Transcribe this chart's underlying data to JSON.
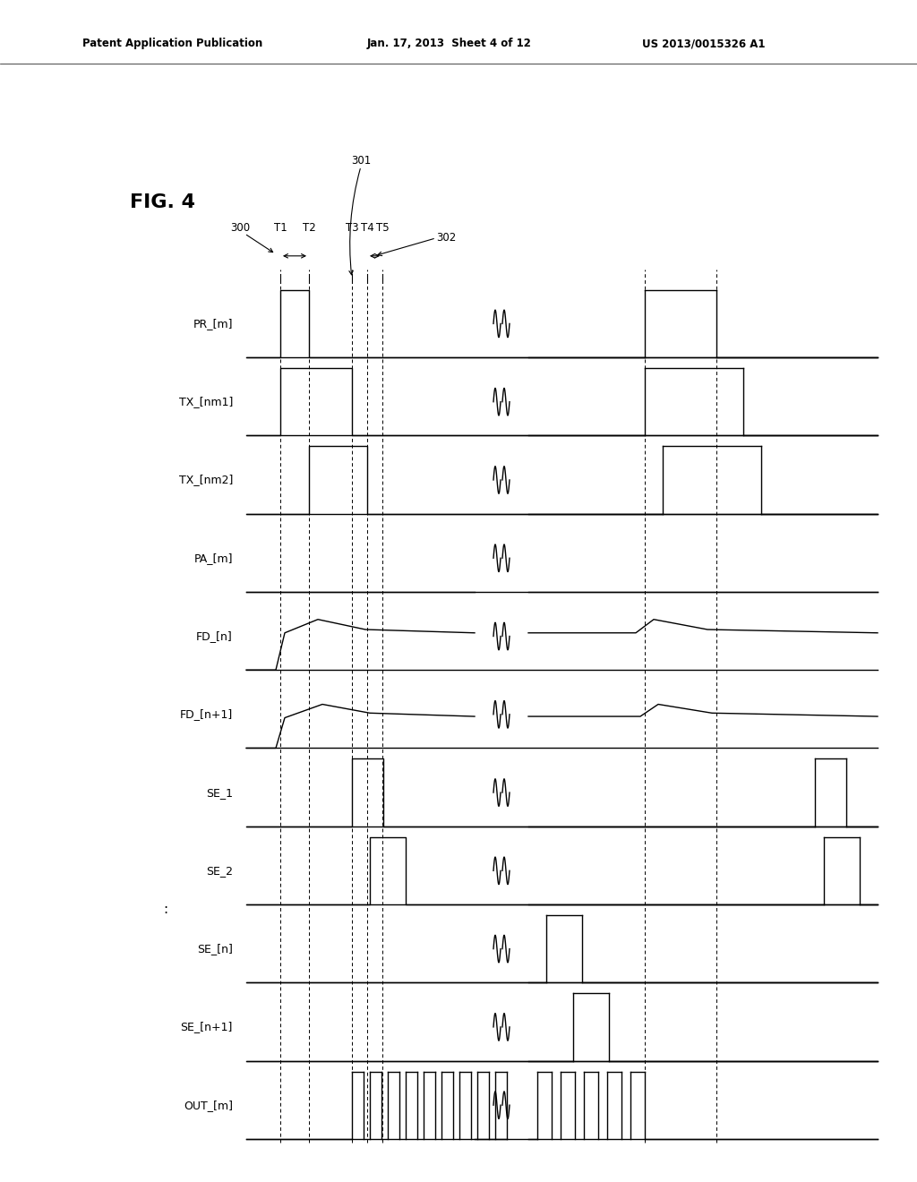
{
  "header_left": "Patent Application Publication",
  "header_mid": "Jan. 17, 2013  Sheet 4 of 12",
  "header_right": "US 2013/0015326 A1",
  "fig_label": "FIG. 4",
  "signals": [
    "PR_[m]",
    "TX_[nm1]",
    "TX_[nm2]",
    "PA_[m]",
    "FD_[n]",
    "FD_[n+1]",
    "SE_1",
    "SE_2",
    "SE_[n]",
    "SE_[n+1]",
    "OUT_[m]"
  ],
  "bg_color": "#ffffff",
  "line_color": "#000000",
  "t_labels": [
    "T1",
    "T2",
    "T3",
    "T4",
    "T5"
  ],
  "label_300": "300",
  "label_301": "301",
  "label_302": "302"
}
